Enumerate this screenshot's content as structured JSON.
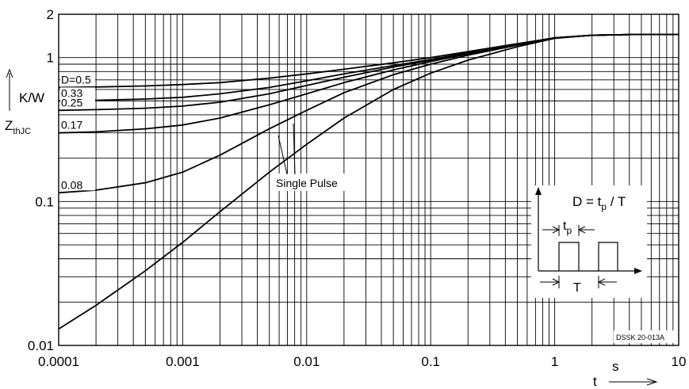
{
  "chart_data": {
    "type": "line",
    "xscale": "log",
    "yscale": "log",
    "xlim": [
      0.0001,
      10
    ],
    "ylim": [
      0.01,
      2
    ],
    "grid": true,
    "x_ticks": [
      {
        "v": 0.0001,
        "label": "0.0001"
      },
      {
        "v": 0.001,
        "label": "0.001"
      },
      {
        "v": 0.01,
        "label": "0.01"
      },
      {
        "v": 0.1,
        "label": "0.1"
      },
      {
        "v": 1,
        "label": "1"
      },
      {
        "v": 10,
        "label": "10"
      }
    ],
    "y_ticks": [
      {
        "v": 0.01,
        "label": "0.01"
      },
      {
        "v": 0.1,
        "label": "0.1"
      },
      {
        "v": 1,
        "label": "1"
      },
      {
        "v": 2,
        "label": "2"
      }
    ],
    "xlabel": "t",
    "xunit": "s",
    "ylabel_main": "Z",
    "ylabel_sub": "thJC",
    "yunit": "K/W",
    "annotation_code": "DSSK 20-013A",
    "single_pulse_label": "Single Pulse",
    "x": [
      0.0001,
      0.0002,
      0.0005,
      0.001,
      0.002,
      0.005,
      0.01,
      0.02,
      0.05,
      0.1,
      0.2,
      0.5,
      1,
      2,
      5,
      10
    ],
    "series": [
      {
        "name": "D=0.5",
        "values": [
          0.62,
          0.625,
          0.635,
          0.65,
          0.67,
          0.72,
          0.77,
          0.83,
          0.92,
          1.0,
          1.1,
          1.25,
          1.37,
          1.43,
          1.45,
          1.45
        ]
      },
      {
        "name": "0.33",
        "values": [
          0.5,
          0.505,
          0.515,
          0.53,
          0.56,
          0.62,
          0.69,
          0.77,
          0.88,
          0.97,
          1.08,
          1.24,
          1.37,
          1.43,
          1.45,
          1.45
        ]
      },
      {
        "name": "0.25",
        "values": [
          0.43,
          0.435,
          0.445,
          0.46,
          0.49,
          0.56,
          0.64,
          0.73,
          0.86,
          0.96,
          1.07,
          1.23,
          1.37,
          1.43,
          1.45,
          1.45
        ]
      },
      {
        "name": "0.17",
        "values": [
          0.3,
          0.305,
          0.32,
          0.34,
          0.38,
          0.47,
          0.56,
          0.67,
          0.82,
          0.94,
          1.06,
          1.23,
          1.37,
          1.43,
          1.45,
          1.45
        ]
      },
      {
        "name": "0.08",
        "values": [
          0.115,
          0.12,
          0.135,
          0.16,
          0.21,
          0.32,
          0.43,
          0.57,
          0.76,
          0.9,
          1.04,
          1.22,
          1.37,
          1.43,
          1.45,
          1.45
        ]
      },
      {
        "name": "Single Pulse",
        "values": [
          0.013,
          0.019,
          0.033,
          0.052,
          0.085,
          0.16,
          0.25,
          0.38,
          0.6,
          0.78,
          0.96,
          1.19,
          1.36,
          1.43,
          1.45,
          1.45
        ]
      }
    ],
    "inset": {
      "formula_lhs": "D = t",
      "formula_sub": "p",
      "formula_rhs": " / T",
      "tp_main": "t",
      "tp_sub": "p",
      "period_label": "T"
    }
  }
}
